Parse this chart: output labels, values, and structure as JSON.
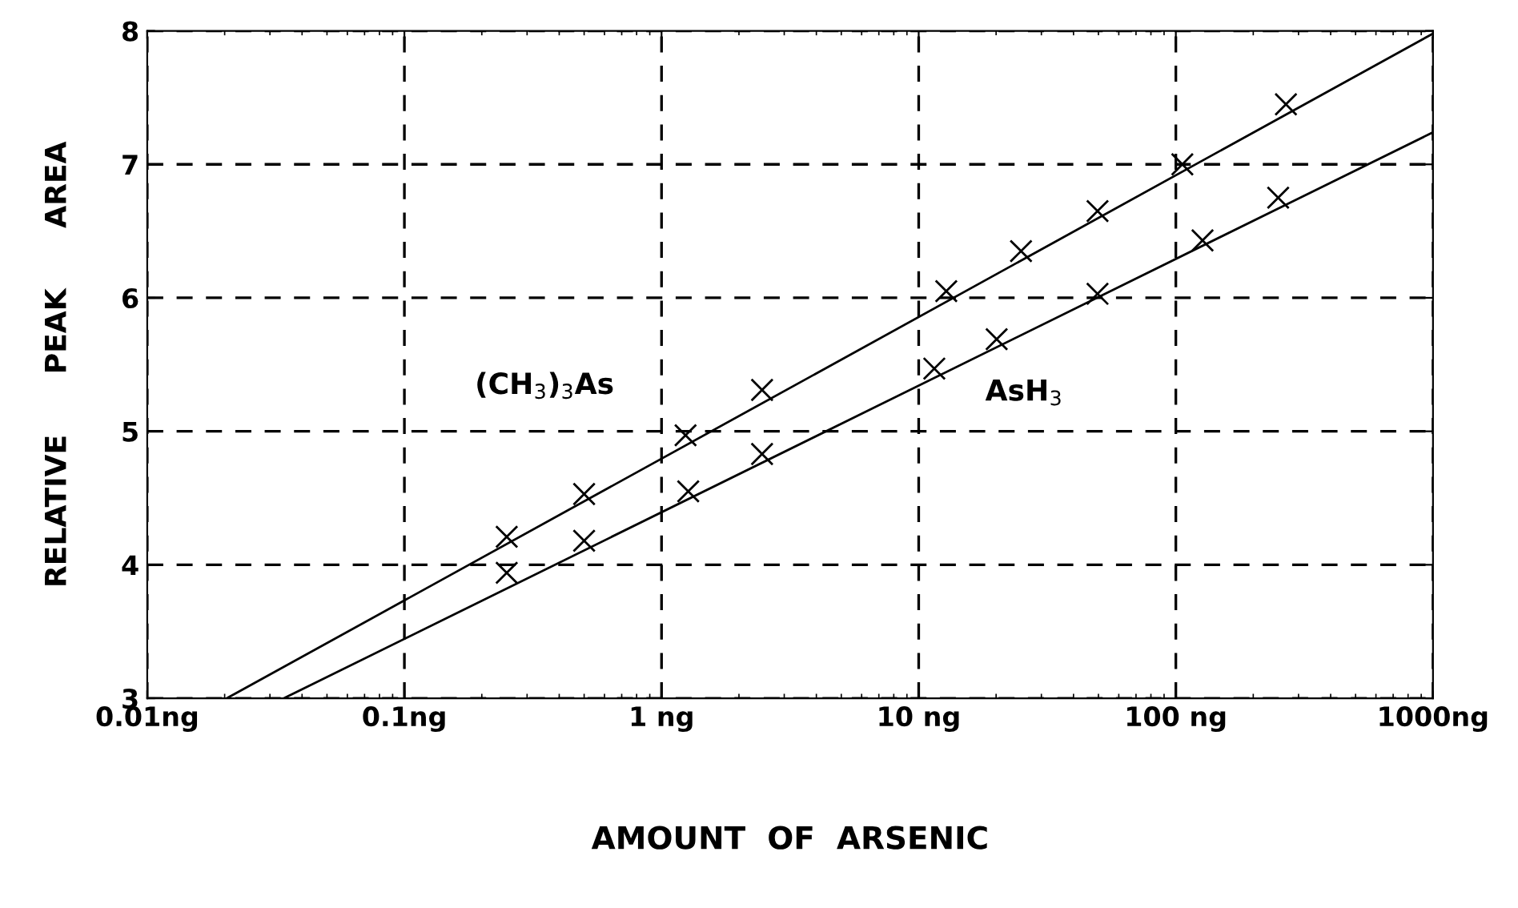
{
  "chart_data": {
    "type": "scatter",
    "xlabel": "AMOUNT  OF  ARSENIC",
    "ylabel": "RELATIVE      PEAK      AREA",
    "log": "x",
    "xlim": [
      0.01,
      1000
    ],
    "ylim": [
      3,
      8
    ],
    "xticks": [
      {
        "value": 0.01,
        "label": "0.01ng"
      },
      {
        "value": 0.1,
        "label": "0.1ng"
      },
      {
        "value": 1,
        "label": "1 ng"
      },
      {
        "value": 10,
        "label": "10 ng"
      },
      {
        "value": 100,
        "label": "100 ng"
      },
      {
        "value": 1000,
        "label": "1000ng"
      }
    ],
    "yticks": [
      3,
      4,
      5,
      6,
      7,
      8
    ],
    "grid": true,
    "marker": "cross",
    "series": [
      {
        "color": "#000000",
        "x": [
          0.25,
          0.5,
          1.24,
          2.46,
          12.8,
          25,
          49.6,
          106,
          268
        ],
        "values": [
          4.21,
          4.53,
          4.97,
          5.31,
          6.05,
          6.35,
          6.65,
          7.0,
          7.45
        ]
      },
      {
        "color": "#000000",
        "x": [
          0.25,
          0.5,
          1.27,
          2.46,
          11.5,
          20.1,
          49.6,
          127,
          250
        ],
        "values": [
          3.94,
          4.18,
          4.55,
          4.83,
          5.47,
          5.69,
          6.03,
          6.43,
          6.75
        ]
      },
      {
        "type": "line",
        "color": "#000000",
        "marker": "none",
        "line_style": "solid",
        "x": [
          0.0204,
          1000
        ],
        "values": [
          3.0,
          7.98
        ]
      },
      {
        "type": "line",
        "color": "#000000",
        "marker": "none",
        "line_style": "solid",
        "x": [
          0.034,
          1000
        ],
        "values": [
          3.0,
          7.24
        ]
      }
    ],
    "annotations": [
      "(CH$_{3}$)$_{3}$As",
      "AsH$_{3}$"
    ]
  }
}
